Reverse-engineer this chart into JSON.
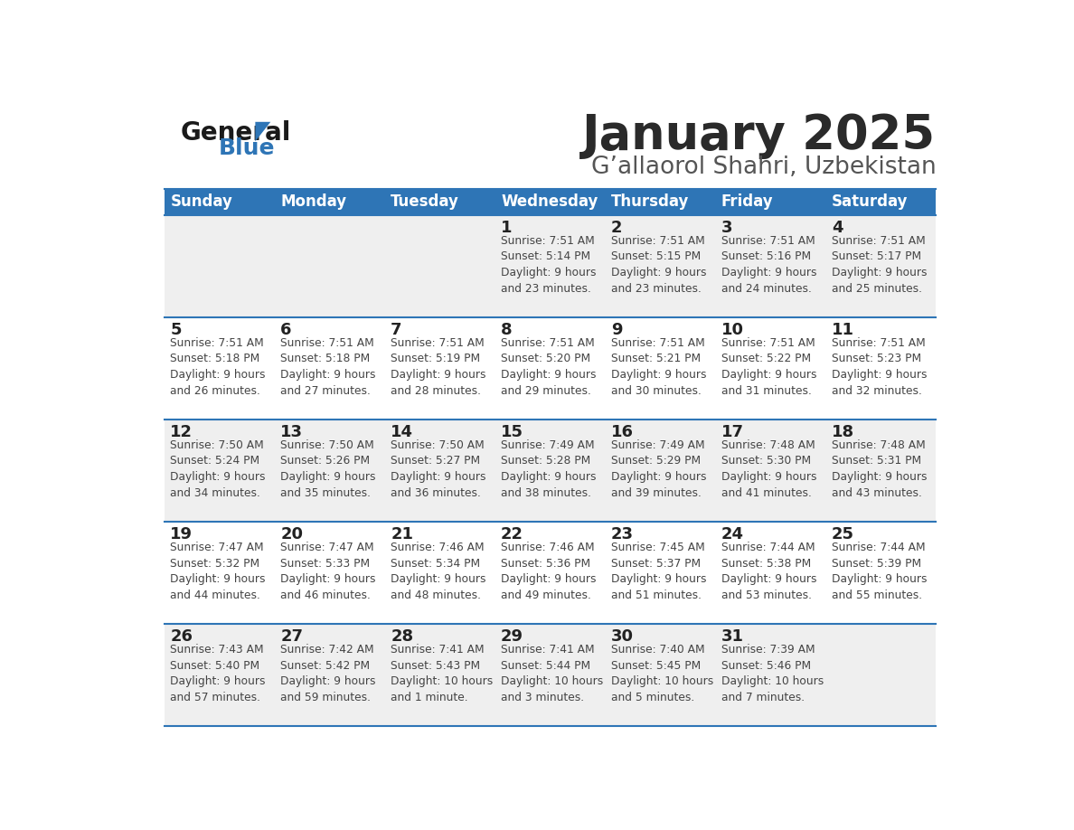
{
  "title": "January 2025",
  "subtitle": "G’allaorol Shahri, Uzbekistan",
  "days_of_week": [
    "Sunday",
    "Monday",
    "Tuesday",
    "Wednesday",
    "Thursday",
    "Friday",
    "Saturday"
  ],
  "header_bg": "#2E75B6",
  "header_text": "#FFFFFF",
  "row_bg_even": "#EFEFEF",
  "row_bg_odd": "#FFFFFF",
  "cell_text": "#444444",
  "day_num_color": "#222222",
  "divider_color": "#2E75B6",
  "calendar_data": [
    [
      null,
      null,
      null,
      {
        "day": 1,
        "sunrise": "7:51 AM",
        "sunset": "5:14 PM",
        "daylight": "9 hours",
        "daylight2": "and 23 minutes."
      },
      {
        "day": 2,
        "sunrise": "7:51 AM",
        "sunset": "5:15 PM",
        "daylight": "9 hours",
        "daylight2": "and 23 minutes."
      },
      {
        "day": 3,
        "sunrise": "7:51 AM",
        "sunset": "5:16 PM",
        "daylight": "9 hours",
        "daylight2": "and 24 minutes."
      },
      {
        "day": 4,
        "sunrise": "7:51 AM",
        "sunset": "5:17 PM",
        "daylight": "9 hours",
        "daylight2": "and 25 minutes."
      }
    ],
    [
      {
        "day": 5,
        "sunrise": "7:51 AM",
        "sunset": "5:18 PM",
        "daylight": "9 hours",
        "daylight2": "and 26 minutes."
      },
      {
        "day": 6,
        "sunrise": "7:51 AM",
        "sunset": "5:18 PM",
        "daylight": "9 hours",
        "daylight2": "and 27 minutes."
      },
      {
        "day": 7,
        "sunrise": "7:51 AM",
        "sunset": "5:19 PM",
        "daylight": "9 hours",
        "daylight2": "and 28 minutes."
      },
      {
        "day": 8,
        "sunrise": "7:51 AM",
        "sunset": "5:20 PM",
        "daylight": "9 hours",
        "daylight2": "and 29 minutes."
      },
      {
        "day": 9,
        "sunrise": "7:51 AM",
        "sunset": "5:21 PM",
        "daylight": "9 hours",
        "daylight2": "and 30 minutes."
      },
      {
        "day": 10,
        "sunrise": "7:51 AM",
        "sunset": "5:22 PM",
        "daylight": "9 hours",
        "daylight2": "and 31 minutes."
      },
      {
        "day": 11,
        "sunrise": "7:51 AM",
        "sunset": "5:23 PM",
        "daylight": "9 hours",
        "daylight2": "and 32 minutes."
      }
    ],
    [
      {
        "day": 12,
        "sunrise": "7:50 AM",
        "sunset": "5:24 PM",
        "daylight": "9 hours",
        "daylight2": "and 34 minutes."
      },
      {
        "day": 13,
        "sunrise": "7:50 AM",
        "sunset": "5:26 PM",
        "daylight": "9 hours",
        "daylight2": "and 35 minutes."
      },
      {
        "day": 14,
        "sunrise": "7:50 AM",
        "sunset": "5:27 PM",
        "daylight": "9 hours",
        "daylight2": "and 36 minutes."
      },
      {
        "day": 15,
        "sunrise": "7:49 AM",
        "sunset": "5:28 PM",
        "daylight": "9 hours",
        "daylight2": "and 38 minutes."
      },
      {
        "day": 16,
        "sunrise": "7:49 AM",
        "sunset": "5:29 PM",
        "daylight": "9 hours",
        "daylight2": "and 39 minutes."
      },
      {
        "day": 17,
        "sunrise": "7:48 AM",
        "sunset": "5:30 PM",
        "daylight": "9 hours",
        "daylight2": "and 41 minutes."
      },
      {
        "day": 18,
        "sunrise": "7:48 AM",
        "sunset": "5:31 PM",
        "daylight": "9 hours",
        "daylight2": "and 43 minutes."
      }
    ],
    [
      {
        "day": 19,
        "sunrise": "7:47 AM",
        "sunset": "5:32 PM",
        "daylight": "9 hours",
        "daylight2": "and 44 minutes."
      },
      {
        "day": 20,
        "sunrise": "7:47 AM",
        "sunset": "5:33 PM",
        "daylight": "9 hours",
        "daylight2": "and 46 minutes."
      },
      {
        "day": 21,
        "sunrise": "7:46 AM",
        "sunset": "5:34 PM",
        "daylight": "9 hours",
        "daylight2": "and 48 minutes."
      },
      {
        "day": 22,
        "sunrise": "7:46 AM",
        "sunset": "5:36 PM",
        "daylight": "9 hours",
        "daylight2": "and 49 minutes."
      },
      {
        "day": 23,
        "sunrise": "7:45 AM",
        "sunset": "5:37 PM",
        "daylight": "9 hours",
        "daylight2": "and 51 minutes."
      },
      {
        "day": 24,
        "sunrise": "7:44 AM",
        "sunset": "5:38 PM",
        "daylight": "9 hours",
        "daylight2": "and 53 minutes."
      },
      {
        "day": 25,
        "sunrise": "7:44 AM",
        "sunset": "5:39 PM",
        "daylight": "9 hours",
        "daylight2": "and 55 minutes."
      }
    ],
    [
      {
        "day": 26,
        "sunrise": "7:43 AM",
        "sunset": "5:40 PM",
        "daylight": "9 hours",
        "daylight2": "and 57 minutes."
      },
      {
        "day": 27,
        "sunrise": "7:42 AM",
        "sunset": "5:42 PM",
        "daylight": "9 hours",
        "daylight2": "and 59 minutes."
      },
      {
        "day": 28,
        "sunrise": "7:41 AM",
        "sunset": "5:43 PM",
        "daylight": "10 hours",
        "daylight2": "and 1 minute."
      },
      {
        "day": 29,
        "sunrise": "7:41 AM",
        "sunset": "5:44 PM",
        "daylight": "10 hours",
        "daylight2": "and 3 minutes."
      },
      {
        "day": 30,
        "sunrise": "7:40 AM",
        "sunset": "5:45 PM",
        "daylight": "10 hours",
        "daylight2": "and 5 minutes."
      },
      {
        "day": 31,
        "sunrise": "7:39 AM",
        "sunset": "5:46 PM",
        "daylight": "10 hours",
        "daylight2": "and 7 minutes."
      },
      null
    ]
  ]
}
